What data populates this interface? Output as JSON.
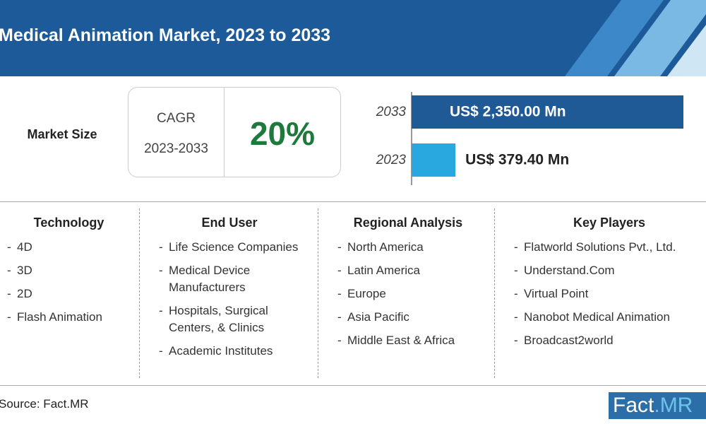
{
  "header": {
    "title": "Medical Animation Market, 2023 to 2033"
  },
  "market": {
    "label": "Market Size",
    "cagr_label": "CAGR",
    "cagr_period": "2023-2033",
    "cagr_value": "20%"
  },
  "chart_data": {
    "type": "bar",
    "orientation": "horizontal",
    "categories": [
      "2033",
      "2023"
    ],
    "values": [
      2350,
      379.4
    ],
    "value_labels": [
      "US$ 2,350.00 Mn",
      "US$ 379.40 Mn"
    ],
    "colors": [
      "#1f5a96",
      "#29a8e0"
    ]
  },
  "segments": [
    {
      "heading": "Technology",
      "items": [
        "4D",
        "3D",
        "2D",
        "Flash Animation"
      ]
    },
    {
      "heading": "End User",
      "items": [
        "Life Science Companies",
        "Medical Device Manufacturers",
        "Hospitals, Surgical Centers, & Clinics",
        "Academic Institutes"
      ]
    },
    {
      "heading": "Regional Analysis",
      "items": [
        "North America",
        "Latin America",
        "Europe",
        "Asia Pacific",
        "Middle East & Africa"
      ]
    },
    {
      "heading": "Key Players",
      "items": [
        "Flatworld Solutions Pvt., Ltd.",
        "Understand.Com",
        "Virtual Point",
        "Nanobot Medical Animation",
        "Broadcast2world"
      ]
    }
  ],
  "footer": {
    "source": "Source: Fact.MR",
    "logo": [
      "Fact",
      ".MR"
    ]
  }
}
